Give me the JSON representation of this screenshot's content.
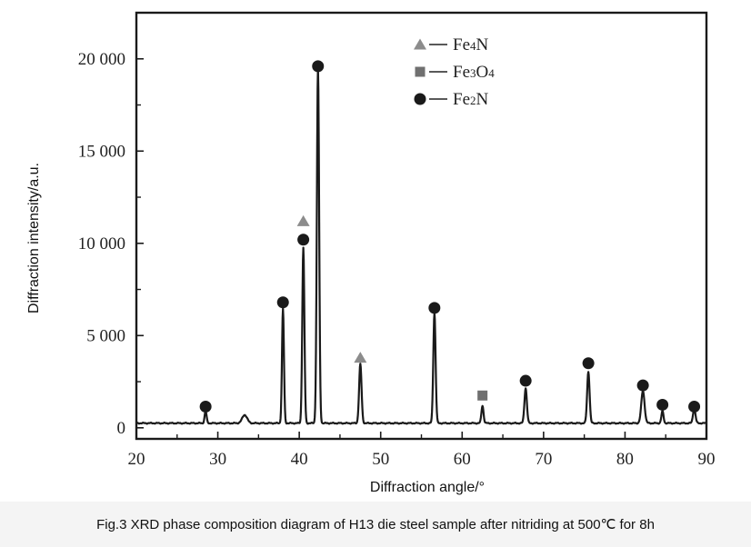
{
  "chart_data": {
    "type": "line",
    "xlabel": "Diffraction angle/°",
    "ylabel": "Diffraction intensity/a.u.",
    "xlim": [
      20,
      90
    ],
    "ylim": [
      -600,
      22500
    ],
    "x_ticks": [
      20,
      30,
      40,
      50,
      60,
      70,
      80,
      90
    ],
    "x_tick_labels": [
      "20",
      "30",
      "40",
      "50",
      "60",
      "70",
      "80",
      "90"
    ],
    "y_ticks": [
      0,
      5000,
      10000,
      15000,
      20000
    ],
    "y_tick_labels": [
      "0",
      "5 000",
      "10 000",
      "15 000",
      "20 000"
    ],
    "grid": false,
    "legend_position": "top-center",
    "baseline": 250,
    "peaks": [
      {
        "x": 28.5,
        "y": 650,
        "w": 0.12
      },
      {
        "x": 33.3,
        "y": 450,
        "w": 0.3
      },
      {
        "x": 38.0,
        "y": 6200,
        "w": 0.12
      },
      {
        "x": 40.5,
        "y": 9500,
        "w": 0.13
      },
      {
        "x": 42.3,
        "y": 19300,
        "w": 0.14
      },
      {
        "x": 47.5,
        "y": 3200,
        "w": 0.15
      },
      {
        "x": 56.6,
        "y": 6000,
        "w": 0.14
      },
      {
        "x": 62.5,
        "y": 950,
        "w": 0.13
      },
      {
        "x": 67.8,
        "y": 1900,
        "w": 0.15
      },
      {
        "x": 75.5,
        "y": 2800,
        "w": 0.15
      },
      {
        "x": 82.2,
        "y": 1750,
        "w": 0.2
      },
      {
        "x": 84.6,
        "y": 650,
        "w": 0.13
      },
      {
        "x": 88.5,
        "y": 800,
        "w": 0.15
      }
    ],
    "markers": [
      {
        "phase": "Fe2N",
        "x": 28.5,
        "y": 1150
      },
      {
        "phase": "Fe2N",
        "x": 38.0,
        "y": 6800
      },
      {
        "phase": "Fe4N",
        "x": 40.5,
        "y": 11200
      },
      {
        "phase": "Fe2N",
        "x": 40.5,
        "y": 10200
      },
      {
        "phase": "Fe2N",
        "x": 42.3,
        "y": 19600
      },
      {
        "phase": "Fe4N",
        "x": 47.5,
        "y": 3800
      },
      {
        "phase": "Fe2N",
        "x": 56.6,
        "y": 6500
      },
      {
        "phase": "Fe3O4",
        "x": 62.5,
        "y": 1750
      },
      {
        "phase": "Fe2N",
        "x": 67.8,
        "y": 2550
      },
      {
        "phase": "Fe2N",
        "x": 75.5,
        "y": 3500
      },
      {
        "phase": "Fe2N",
        "x": 82.2,
        "y": 2300
      },
      {
        "phase": "Fe2N",
        "x": 84.6,
        "y": 1250
      },
      {
        "phase": "Fe2N",
        "x": 88.5,
        "y": 1150
      }
    ],
    "legend": [
      {
        "phase": "Fe4N",
        "shape": "triangle",
        "color": "#8c8c8c",
        "base": "Fe",
        "sub": "4",
        "rest": "N"
      },
      {
        "phase": "Fe3O4",
        "shape": "square",
        "color": "#707070",
        "base": "Fe",
        "sub": "3",
        "rest": "O",
        "sub2": "4"
      },
      {
        "phase": "Fe2N",
        "shape": "circle",
        "color": "#1a1a1a",
        "base": "Fe",
        "sub": "2",
        "rest": "N"
      }
    ],
    "colors": {
      "line": "#1a1a1a",
      "axis": "#1a1a1a"
    }
  },
  "caption": "Fig.3 XRD phase composition diagram of H13 die steel sample after nitriding at 500℃ for 8h"
}
